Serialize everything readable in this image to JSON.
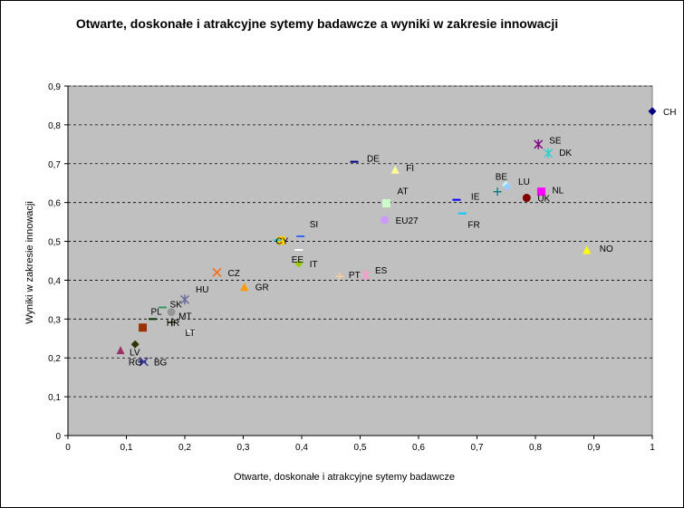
{
  "chart_data": {
    "type": "scatter",
    "title": "Otwarte, doskonałe i atrakcyjne sytemy badawcze a wyniki w zakresie innowacji",
    "xlabel": "Otwarte, doskonałe i atrakcyjne sytemy badawcze",
    "ylabel": "Wyniki w zakresie innowacji",
    "xlim": [
      0,
      1
    ],
    "ylim": [
      0,
      0.9
    ],
    "x_ticks": [
      "0",
      "0,1",
      "0,2",
      "0,3",
      "0,4",
      "0,5",
      "0,6",
      "0,7",
      "0,8",
      "0,9",
      "1"
    ],
    "y_ticks": [
      "0",
      "0,1",
      "0,2",
      "0,3",
      "0,4",
      "0,5",
      "0,6",
      "0,7",
      "0,8",
      "0,9"
    ],
    "grid": "horizontal dashed",
    "plot_background": "#c0c0c0",
    "points": [
      {
        "label": "CH",
        "x": 1.0,
        "y": 0.835,
        "marker": "diamond",
        "color": "#000080"
      },
      {
        "label": "SE",
        "x": 0.805,
        "y": 0.75,
        "marker": "star",
        "color": "#800080"
      },
      {
        "label": "DK",
        "x": 0.822,
        "y": 0.727,
        "marker": "star",
        "color": "#33cccc"
      },
      {
        "label": "DE",
        "x": 0.49,
        "y": 0.705,
        "marker": "dash",
        "color": "#000080"
      },
      {
        "label": "FI",
        "x": 0.56,
        "y": 0.685,
        "marker": "triangle",
        "color": "#ffff99"
      },
      {
        "label": "BE",
        "x": 0.75,
        "y": 0.645,
        "marker": "diamond",
        "color": "#ccffff"
      },
      {
        "label": "LU",
        "x": 0.752,
        "y": 0.641,
        "marker": "diamond",
        "color": "#99ccff"
      },
      {
        "label": "NL",
        "x": 0.81,
        "y": 0.628,
        "marker": "square",
        "color": "#ff00ff"
      },
      {
        "label": "UK",
        "x": 0.785,
        "y": 0.612,
        "marker": "circle",
        "color": "#800000"
      },
      {
        "label": "IE",
        "x": 0.665,
        "y": 0.607,
        "marker": "dash",
        "color": "#0000ff"
      },
      {
        "label": "AT",
        "x": 0.545,
        "y": 0.598,
        "marker": "square",
        "color": "#ccffcc"
      },
      {
        "label": "",
        "x": 0.735,
        "y": 0.628,
        "marker": "plus",
        "color": "#008080"
      },
      {
        "label": "FR",
        "x": 0.675,
        "y": 0.572,
        "marker": "dash",
        "color": "#00ccff"
      },
      {
        "label": "EU27",
        "x": 0.542,
        "y": 0.555,
        "marker": "circle",
        "color": "#cc99ff"
      },
      {
        "label": "NO",
        "x": 0.888,
        "y": 0.478,
        "marker": "triangle",
        "color": "#ffff00"
      },
      {
        "label": "SI",
        "x": 0.398,
        "y": 0.513,
        "marker": "dash",
        "color": "#3366ff"
      },
      {
        "label": "CY",
        "x": 0.365,
        "y": 0.502,
        "marker": "square",
        "color": "#ffcc00"
      },
      {
        "label": "",
        "x": 0.358,
        "y": 0.503,
        "marker": "dash",
        "color": "#33cccc"
      },
      {
        "label": "EE",
        "x": 0.395,
        "y": 0.478,
        "marker": "dash",
        "color": "#ffffff"
      },
      {
        "label": "IT",
        "x": 0.395,
        "y": 0.443,
        "marker": "diamond",
        "color": "#99cc00"
      },
      {
        "label": "PT",
        "x": 0.465,
        "y": 0.41,
        "marker": "plus",
        "color": "#ffcc99"
      },
      {
        "label": "ES",
        "x": 0.51,
        "y": 0.413,
        "marker": "star",
        "color": "#ff99cc"
      },
      {
        "label": "CZ",
        "x": 0.255,
        "y": 0.42,
        "marker": "cross",
        "color": "#ff6600"
      },
      {
        "label": "GR",
        "x": 0.302,
        "y": 0.383,
        "marker": "triangle",
        "color": "#ff9900"
      },
      {
        "label": "HU",
        "x": 0.2,
        "y": 0.35,
        "marker": "star",
        "color": "#666699"
      },
      {
        "label": "SK",
        "x": 0.162,
        "y": 0.33,
        "marker": "dash",
        "color": "#339966"
      },
      {
        "label": "MT",
        "x": 0.177,
        "y": 0.318,
        "marker": "circle",
        "color": "#969696"
      },
      {
        "label": "PL",
        "x": 0.145,
        "y": 0.3,
        "marker": "dash",
        "color": "#003300"
      },
      {
        "label": "HR",
        "x": 0.178,
        "y": 0.292,
        "marker": "plus",
        "color": "#333300"
      },
      {
        "label": "LT",
        "x": 0.21,
        "y": 0.27,
        "marker": "dash",
        "color": "#ffffff"
      },
      {
        "label": "",
        "x": 0.128,
        "y": 0.278,
        "marker": "square",
        "color": "#993300"
      },
      {
        "label": "",
        "x": 0.115,
        "y": 0.235,
        "marker": "diamond",
        "color": "#333300"
      },
      {
        "label": "LV",
        "x": 0.09,
        "y": 0.22,
        "marker": "triangle",
        "color": "#993366"
      },
      {
        "label": "RO",
        "x": 0.127,
        "y": 0.19,
        "marker": "dash",
        "color": "#333399"
      },
      {
        "label": "BG",
        "x": 0.13,
        "y": 0.19,
        "marker": "cross",
        "color": "#333399"
      }
    ]
  }
}
